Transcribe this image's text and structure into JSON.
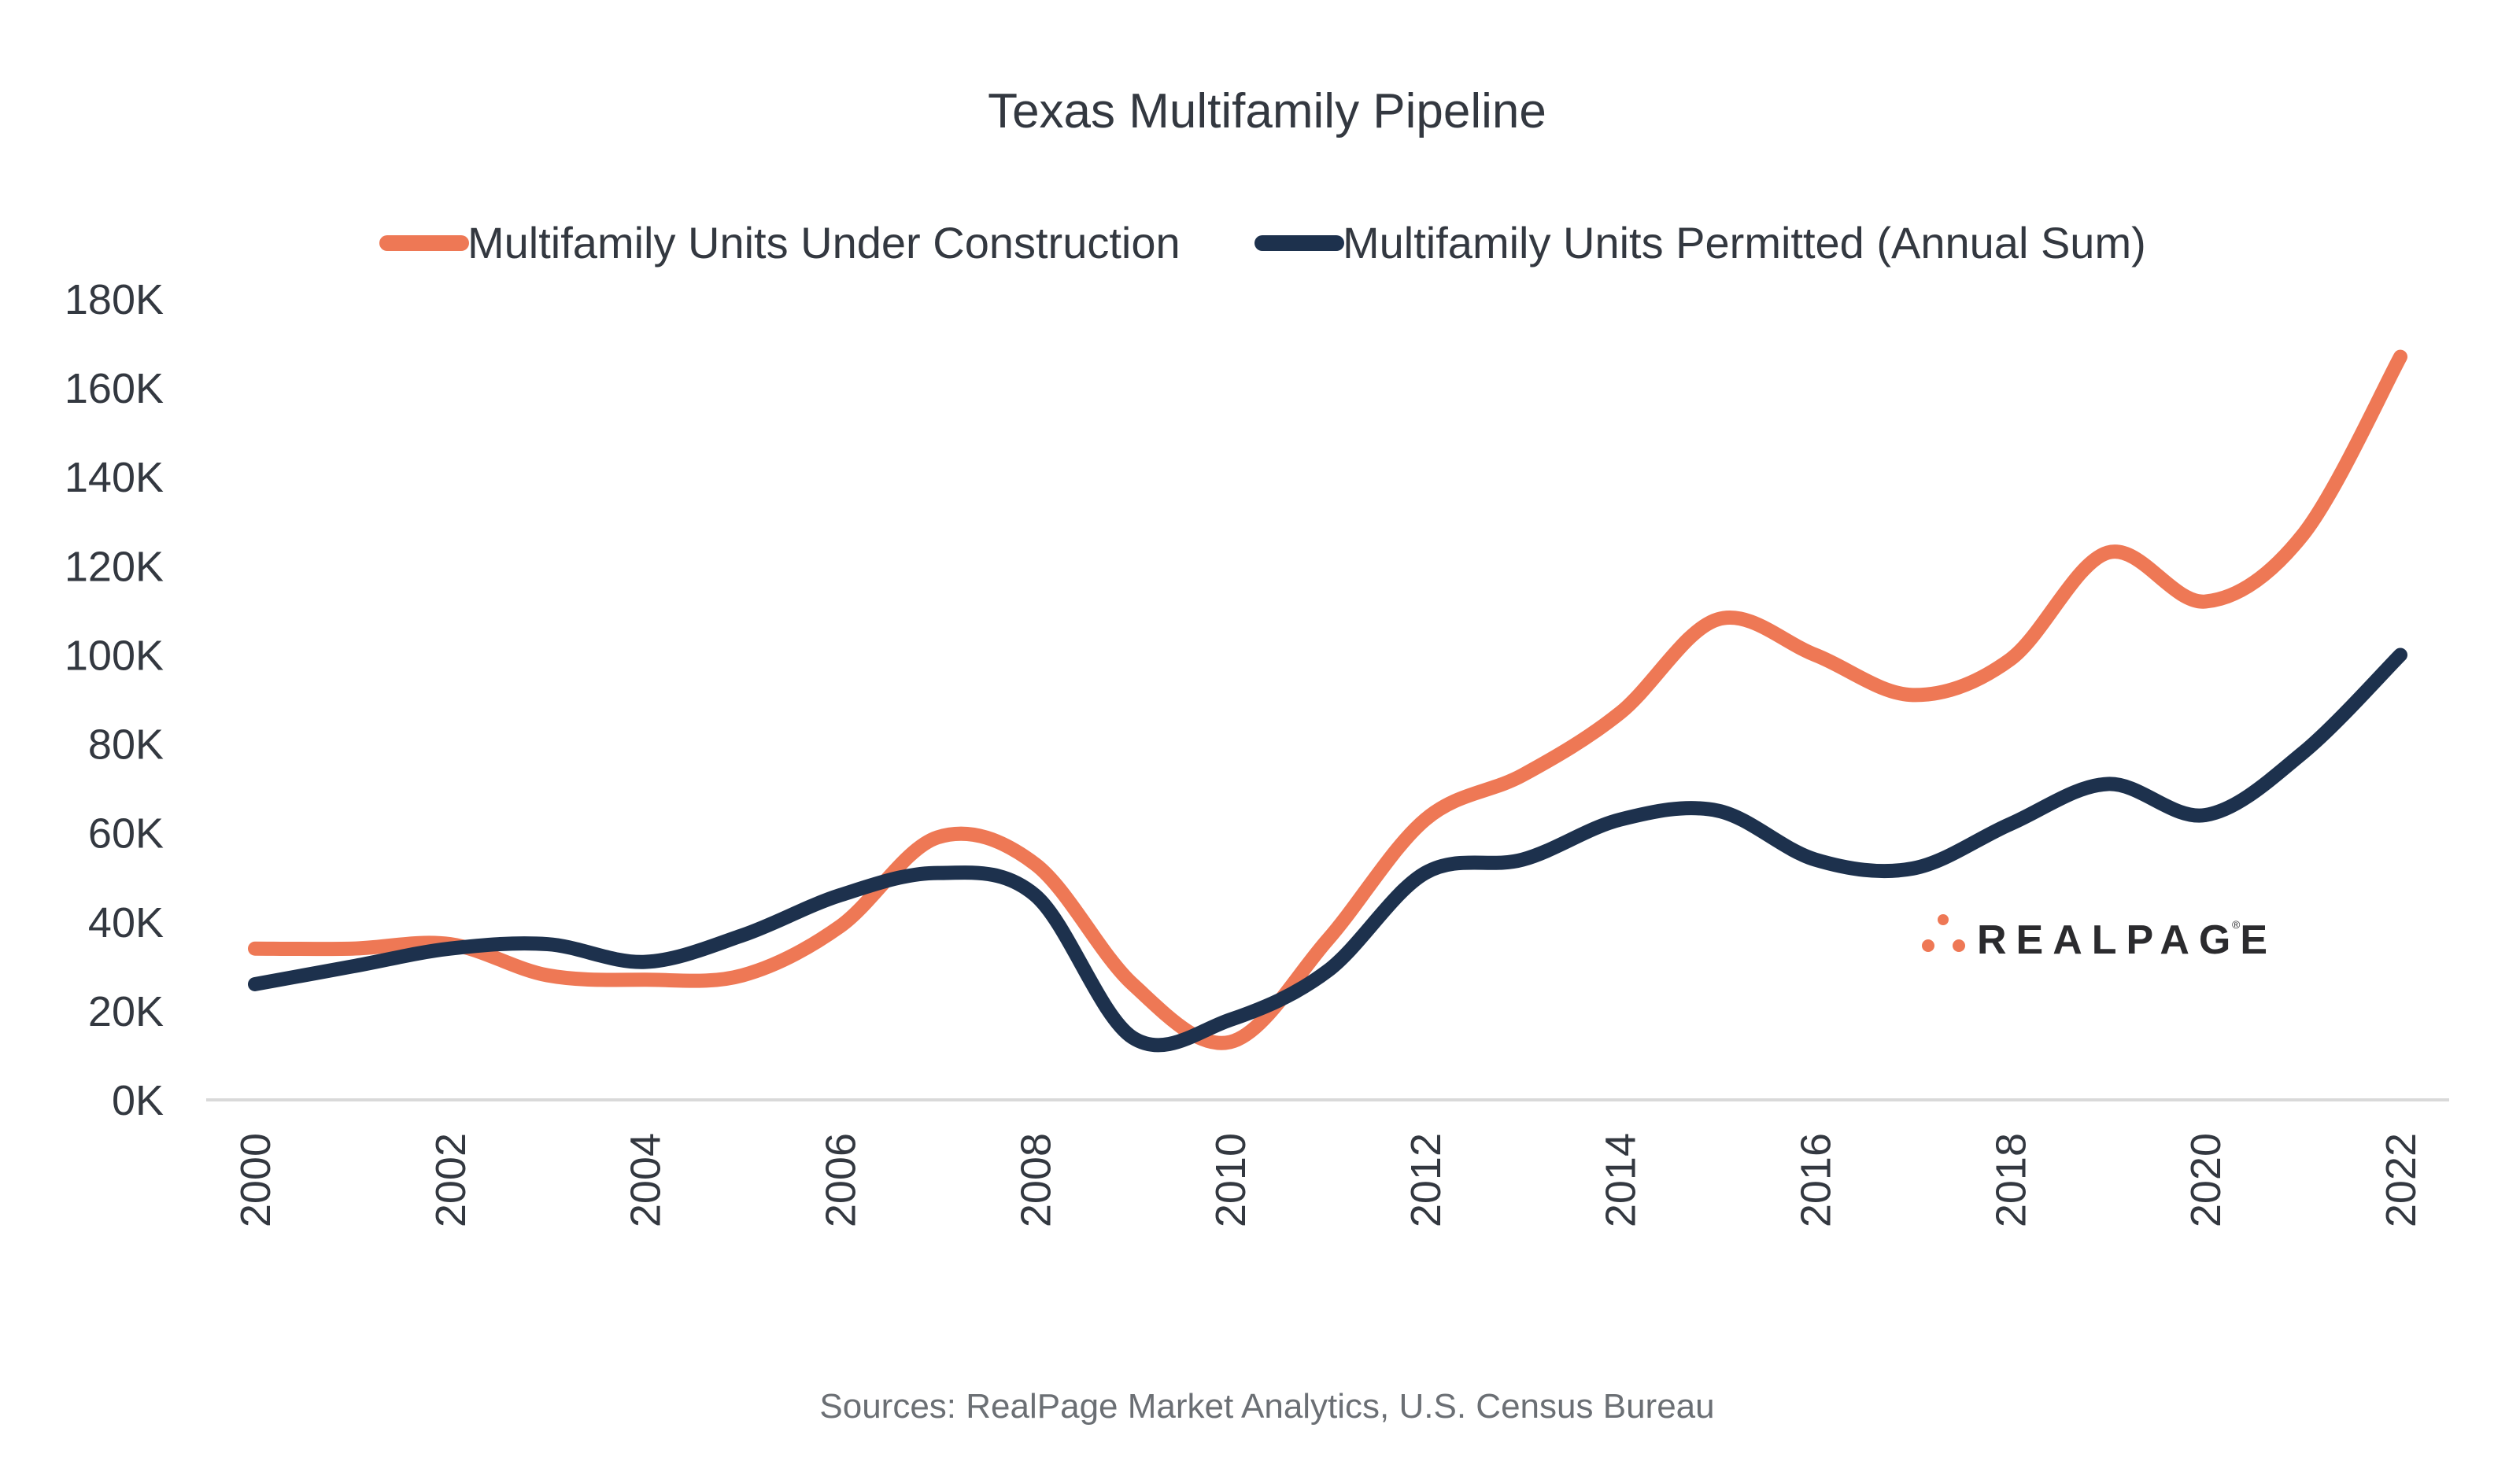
{
  "chart_data": {
    "type": "line",
    "title": "Texas Multifamily Pipeline",
    "xlabel": "",
    "ylabel": "",
    "x": [
      2000,
      2001,
      2002,
      2003,
      2004,
      2005,
      2006,
      2007,
      2008,
      2009,
      2010,
      2011,
      2012,
      2013,
      2014,
      2015,
      2016,
      2017,
      2018,
      2019,
      2020,
      2021,
      2022
    ],
    "x_tick_labels": [
      "2000",
      "2002",
      "2004",
      "2006",
      "2008",
      "2010",
      "2012",
      "2014",
      "2016",
      "2018",
      "2020",
      "2022"
    ],
    "x_tick_values": [
      2000,
      2002,
      2004,
      2006,
      2008,
      2010,
      2012,
      2014,
      2016,
      2018,
      2020,
      2022
    ],
    "ylim": [
      0,
      180000
    ],
    "y_ticks": [
      0,
      20000,
      40000,
      60000,
      80000,
      100000,
      120000,
      140000,
      160000,
      180000
    ],
    "y_tick_labels": [
      "0K",
      "20K",
      "40K",
      "60K",
      "80K",
      "100K",
      "120K",
      "140K",
      "160K",
      "180K"
    ],
    "grid": false,
    "legend_position": "top-center",
    "smooth": true,
    "series": [
      {
        "name": "Multifamily Units Under Construction",
        "color": "#EE7855",
        "values": [
          34000,
          34000,
          35000,
          28000,
          27000,
          28000,
          39000,
          59000,
          53000,
          26000,
          13000,
          36000,
          63000,
          73000,
          87000,
          108000,
          100000,
          91000,
          99000,
          123000,
          112000,
          127000,
          167000
        ]
      },
      {
        "name": "Multifamily Units Permitted (Annual Sum)",
        "color": "#1D314D",
        "values": [
          26000,
          30000,
          34000,
          35000,
          31000,
          37000,
          46000,
          51000,
          46000,
          14000,
          18000,
          29000,
          51000,
          54000,
          63000,
          65000,
          54000,
          52000,
          62000,
          71000,
          64000,
          78000,
          100000
        ]
      }
    ],
    "source": "Sources: RealPage Market Analytics, U.S. Census Bureau"
  },
  "logo": {
    "text": "REALPAGE",
    "mark": "®",
    "dot_color": "#EE7855"
  }
}
